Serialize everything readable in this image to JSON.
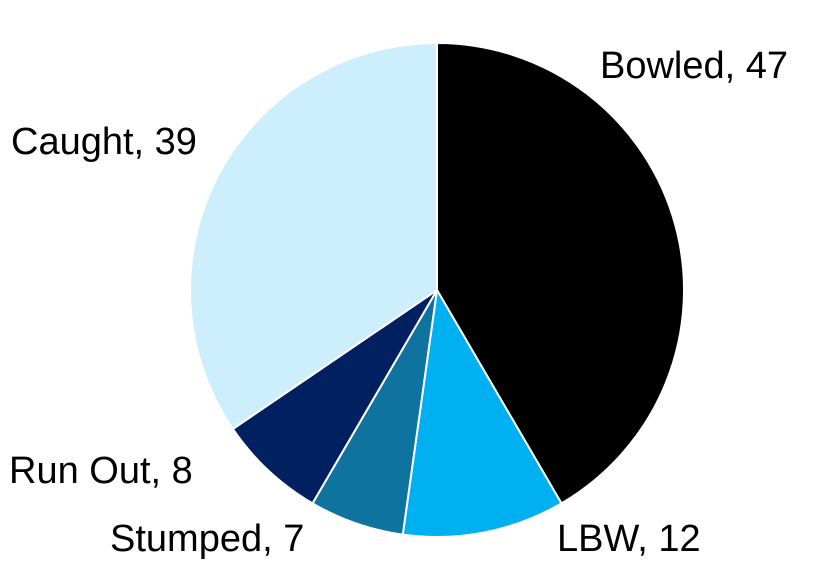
{
  "chart_data": {
    "type": "pie",
    "title": "",
    "start_angle_deg": 0,
    "direction": "clockwise",
    "slices": [
      {
        "label": "Bowled",
        "value": 47,
        "color": "#000000",
        "display": "Bowled, 47"
      },
      {
        "label": "LBW",
        "value": 12,
        "color": "#00b0f0",
        "display": "LBW, 12"
      },
      {
        "label": "Stumped",
        "value": 7,
        "color": "#0e739f",
        "display": "Stumped, 7"
      },
      {
        "label": "Run Out",
        "value": 8,
        "color": "#002060",
        "display": "Run Out, 8"
      },
      {
        "label": "Caught",
        "value": 39,
        "color": "#cdeefc",
        "display": "Caught, 39"
      }
    ]
  }
}
